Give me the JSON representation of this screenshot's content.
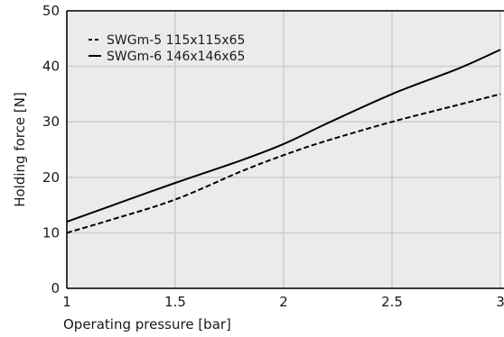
{
  "chart_data": {
    "type": "line",
    "xlabel": "Operating pressure [bar]",
    "ylabel": "Holding force [N]",
    "xlim": [
      1,
      3
    ],
    "ylim": [
      0,
      50
    ],
    "x_ticks": [
      "1",
      "1.5",
      "2",
      "2.5",
      "3"
    ],
    "y_ticks": [
      "0",
      "10",
      "20",
      "30",
      "40",
      "50"
    ],
    "grid": true,
    "legend_position": "top-left",
    "series": [
      {
        "name": "SWGm-5 115x115x65",
        "style": "dashed",
        "color": "#000000",
        "x": [
          1,
          1.2,
          1.5,
          1.8,
          2.0,
          2.2,
          2.5,
          2.8,
          3.0
        ],
        "y": [
          10,
          12.3,
          16,
          21,
          24,
          26.6,
          30,
          33,
          35
        ]
      },
      {
        "name": "SWGm-6 146x146x65",
        "style": "solid",
        "color": "#000000",
        "x": [
          1,
          1.2,
          1.5,
          1.8,
          2.0,
          2.2,
          2.5,
          2.8,
          3.0
        ],
        "y": [
          12,
          14.8,
          19,
          23,
          26,
          29.7,
          35,
          39.5,
          43
        ]
      }
    ]
  },
  "colors": {
    "plot_background": "#ebebeb",
    "grid": "#cfcfcf",
    "frame": "#000000"
  }
}
